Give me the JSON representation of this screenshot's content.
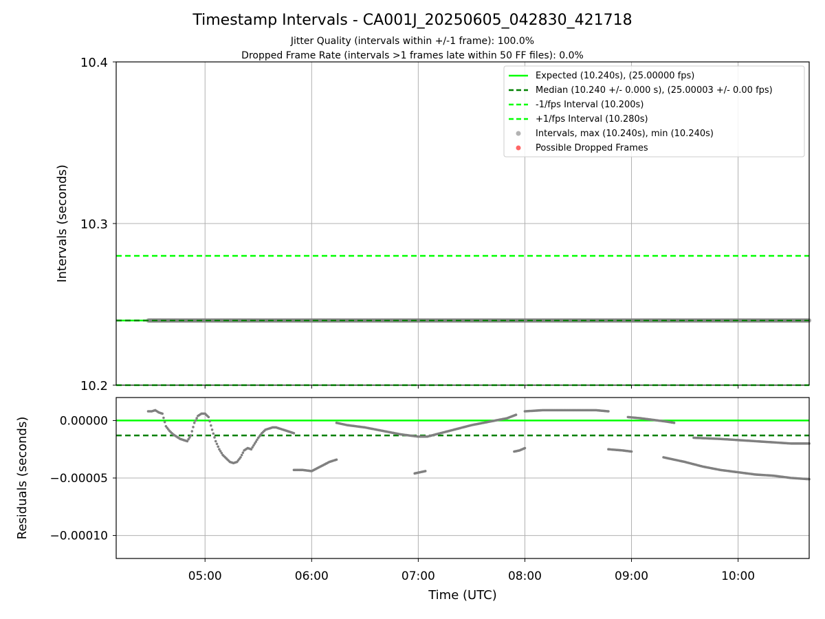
{
  "title": "Timestamp Intervals - CA001J_20250605_042830_421718",
  "subtitle_1": "Jitter Quality (intervals within +/-1 frame): 100.0%",
  "subtitle_2": "Dropped Frame Rate (intervals >1 frames late within 50 FF files): 0.0%",
  "colors": {
    "expected": "#00ff00",
    "median": "#008000",
    "interval_bounds": "#00ff00",
    "points": "#808080",
    "dropped": "#ff0000",
    "grid": "#b0b0b0"
  },
  "chart_data": [
    {
      "type": "scatter",
      "xlabel": "",
      "ylabel": "Intervals (seconds)",
      "ylim": [
        10.2,
        10.4
      ],
      "y_ticks": [
        "10.2",
        "10.3",
        "10.4"
      ],
      "xlim": [
        "04:10",
        "10:40"
      ],
      "grid": true,
      "reference_lines": [
        {
          "label": "Expected (10.240s), (25.00000 fps)",
          "y": 10.24,
          "style": "solid"
        },
        {
          "label": "Median (10.240 +/- 0.000 s), (25.00003 +/- 0.00 fps)",
          "y": 10.24,
          "style": "dashed"
        },
        {
          "label": "-1/fps Interval (10.200s)",
          "y": 10.2,
          "style": "dashed"
        },
        {
          "label": "+1/fps Interval (10.280s)",
          "y": 10.28,
          "style": "dashed"
        }
      ],
      "series": [
        {
          "name": "Intervals, max (10.240s), min (10.240s)",
          "x_range": [
            "04:28",
            "10:40"
          ],
          "y": 10.24
        },
        {
          "name": "Possible Dropped Frames",
          "values": []
        }
      ],
      "legend": "top-right"
    },
    {
      "type": "scatter",
      "xlabel": "Time (UTC)",
      "ylabel": "Residuals (seconds)",
      "ylim": [
        -0.00012,
        2e-05
      ],
      "y_ticks": [
        "0.00000",
        "−0.00005",
        "−0.00010"
      ],
      "x_ticks": [
        "05:00",
        "06:00",
        "07:00",
        "08:00",
        "09:00",
        "10:00"
      ],
      "xlim": [
        "04:10",
        "10:40"
      ],
      "grid": true,
      "reference_lines": [
        {
          "y": 0.0,
          "style": "solid"
        },
        {
          "y": -1.3e-05,
          "style": "dashed"
        }
      ],
      "series": [
        {
          "name": "residuals",
          "segments": [
            {
              "x": [
                "04:28",
                "04:30",
                "04:32",
                "04:34",
                "04:36",
                "04:38",
                "04:40",
                "04:42",
                "04:44",
                "04:46",
                "04:48",
                "04:50",
                "04:52",
                "04:54",
                "04:56",
                "04:58",
                "05:00",
                "05:02",
                "05:04",
                "05:06",
                "05:08",
                "05:10",
                "05:12",
                "05:14",
                "05:16",
                "05:18",
                "05:20",
                "05:22",
                "05:24",
                "05:26",
                "05:28",
                "05:30",
                "05:32",
                "05:34",
                "05:36",
                "05:38",
                "05:40",
                "05:42",
                "05:44",
                "05:46",
                "05:48",
                "05:50"
              ],
              "y": [
                8e-06,
                8e-06,
                9e-06,
                7e-06,
                6e-06,
                -5e-06,
                -9e-06,
                -1.2e-05,
                -1.4e-05,
                -1.6e-05,
                -1.7e-05,
                -1.8e-05,
                -1.3e-05,
                -2e-06,
                4e-06,
                6e-06,
                6e-06,
                3e-06,
                -8e-06,
                -1.8e-05,
                -2.5e-05,
                -3e-05,
                -3.3e-05,
                -3.6e-05,
                -3.7e-05,
                -3.6e-05,
                -3.2e-05,
                -2.6e-05,
                -2.4e-05,
                -2.5e-05,
                -2e-05,
                -1.5e-05,
                -1.1e-05,
                -8e-06,
                -7e-06,
                -6e-06,
                -6e-06,
                -7e-06,
                -8e-06,
                -9e-06,
                -1e-05,
                -1.1e-05
              ]
            },
            {
              "x": [
                "05:50",
                "05:55",
                "06:00",
                "06:05",
                "06:10",
                "06:14"
              ],
              "y": [
                -4.3e-05,
                -4.3e-05,
                -4.4e-05,
                -4e-05,
                -3.6e-05,
                -3.4e-05
              ]
            },
            {
              "x": [
                "06:14",
                "06:20",
                "06:30",
                "06:40",
                "06:50",
                "07:00",
                "07:05",
                "07:10",
                "07:20",
                "07:30",
                "07:40",
                "07:50",
                "07:55"
              ],
              "y": [
                -2e-06,
                -4e-06,
                -6e-06,
                -9e-06,
                -1.2e-05,
                -1.4e-05,
                -1.4e-05,
                -1.2e-05,
                -8e-06,
                -4e-06,
                -1e-06,
                2e-06,
                5e-06
              ]
            },
            {
              "x": [
                "06:58",
                "07:01",
                "07:04"
              ],
              "y": [
                -4.6e-05,
                -4.5e-05,
                -4.4e-05
              ]
            },
            {
              "x": [
                "07:54",
                "07:57",
                "08:00"
              ],
              "y": [
                -2.7e-05,
                -2.6e-05,
                -2.4e-05
              ]
            },
            {
              "x": [
                "08:00",
                "08:10",
                "08:20",
                "08:30",
                "08:40",
                "08:47"
              ],
              "y": [
                8e-06,
                9e-06,
                9e-06,
                9e-06,
                9e-06,
                8e-06
              ]
            },
            {
              "x": [
                "08:47",
                "08:55",
                "09:00"
              ],
              "y": [
                -2.5e-05,
                -2.6e-05,
                -2.7e-05
              ]
            },
            {
              "x": [
                "08:58",
                "09:05",
                "09:10",
                "09:15",
                "09:20",
                "09:24"
              ],
              "y": [
                3e-06,
                2e-06,
                1e-06,
                0.0,
                -1e-06,
                -2e-06
              ]
            },
            {
              "x": [
                "09:18",
                "09:30",
                "09:40",
                "09:50",
                "10:00",
                "10:10",
                "10:20",
                "10:30",
                "10:40"
              ],
              "y": [
                -3.2e-05,
                -3.6e-05,
                -4e-05,
                -4.3e-05,
                -4.5e-05,
                -4.7e-05,
                -4.8e-05,
                -5e-05,
                -5.1e-05
              ]
            },
            {
              "x": [
                "09:35",
                "09:50",
                "10:00",
                "10:10",
                "10:20",
                "10:30",
                "10:40"
              ],
              "y": [
                -1.5e-05,
                -1.6e-05,
                -1.7e-05,
                -1.8e-05,
                -1.9e-05,
                -2e-05,
                -2e-05
              ]
            }
          ]
        }
      ]
    }
  ]
}
